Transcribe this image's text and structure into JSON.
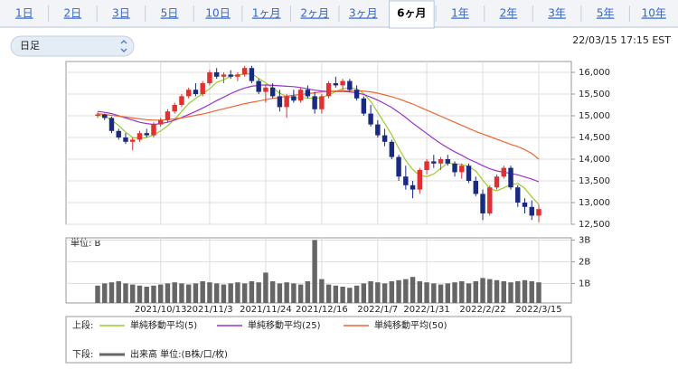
{
  "tabs": [
    "1日",
    "2日",
    "3日",
    "5日",
    "10日",
    "1ヶ月",
    "2ヶ月",
    "3ヶ月",
    "6ヶ月",
    "1年",
    "2年",
    "3年",
    "5年",
    "10年"
  ],
  "selected_tab": 8,
  "dropdown": "日足",
  "timestamp": "22/03/15 17:15 EST",
  "chart_data": {
    "type": "candlestick",
    "categories": [
      null,
      null,
      null,
      null,
      null,
      null,
      null,
      null,
      null,
      "2021/10/13",
      null,
      null,
      null,
      null,
      null,
      null,
      "2021/11/3",
      null,
      null,
      null,
      null,
      null,
      null,
      null,
      "2021/11/24",
      null,
      null,
      null,
      null,
      null,
      null,
      null,
      "2021/12/16",
      null,
      null,
      null,
      null,
      null,
      null,
      null,
      "2022/1/7",
      null,
      null,
      null,
      null,
      null,
      null,
      "2022/1/31",
      null,
      null,
      null,
      null,
      null,
      null,
      null,
      "2022/2/22",
      null,
      null,
      null,
      null,
      null,
      null,
      null,
      "2022/3/15"
    ],
    "candles": [
      [
        15000,
        15080,
        14950,
        15030
      ],
      [
        15030,
        15050,
        14900,
        14950
      ],
      [
        14950,
        14980,
        14600,
        14650
      ],
      [
        14650,
        14700,
        14450,
        14500
      ],
      [
        14500,
        14600,
        14350,
        14400
      ],
      [
        14400,
        14500,
        14200,
        14450
      ],
      [
        14450,
        14650,
        14400,
        14600
      ],
      [
        14600,
        14700,
        14500,
        14550
      ],
      [
        14550,
        14850,
        14500,
        14800
      ],
      [
        14800,
        14950,
        14750,
        14900
      ],
      [
        14900,
        15150,
        14850,
        15100
      ],
      [
        15100,
        15300,
        15050,
        15250
      ],
      [
        15250,
        15500,
        15200,
        15450
      ],
      [
        15450,
        15650,
        15400,
        15600
      ],
      [
        15600,
        15750,
        15450,
        15500
      ],
      [
        15500,
        15800,
        15450,
        15750
      ],
      [
        15750,
        16050,
        15700,
        16000
      ],
      [
        16000,
        16100,
        15850,
        15900
      ],
      [
        15900,
        16000,
        15750,
        15950
      ],
      [
        15950,
        16050,
        15850,
        15900
      ],
      [
        15900,
        16000,
        15800,
        15950
      ],
      [
        15950,
        16150,
        15900,
        16100
      ],
      [
        16100,
        16150,
        15750,
        15800
      ],
      [
        15800,
        15850,
        15500,
        15550
      ],
      [
        15550,
        15700,
        15300,
        15650
      ],
      [
        15650,
        15750,
        15400,
        15450
      ],
      [
        15450,
        15600,
        15100,
        15200
      ],
      [
        15200,
        15500,
        14950,
        15450
      ],
      [
        15450,
        15600,
        15300,
        15350
      ],
      [
        15350,
        15650,
        15300,
        15600
      ],
      [
        15600,
        15700,
        15400,
        15450
      ],
      [
        15450,
        15550,
        15050,
        15150
      ],
      [
        15150,
        15500,
        15050,
        15450
      ],
      [
        15450,
        15800,
        15400,
        15750
      ],
      [
        15750,
        15900,
        15650,
        15700
      ],
      [
        15700,
        15850,
        15600,
        15800
      ],
      [
        15800,
        15850,
        15550,
        15600
      ],
      [
        15600,
        15700,
        15350,
        15400
      ],
      [
        15400,
        15450,
        15000,
        15050
      ],
      [
        15050,
        15250,
        14750,
        14800
      ],
      [
        14800,
        14900,
        14500,
        14550
      ],
      [
        14550,
        14700,
        14300,
        14400
      ],
      [
        14400,
        14450,
        14000,
        14050
      ],
      [
        14050,
        14100,
        13500,
        13600
      ],
      [
        13600,
        13850,
        13300,
        13400
      ],
      [
        13400,
        13500,
        13100,
        13300
      ],
      [
        13300,
        13800,
        13200,
        13750
      ],
      [
        13750,
        14000,
        13650,
        13950
      ],
      [
        13950,
        14100,
        13800,
        13900
      ],
      [
        13900,
        14050,
        13750,
        14000
      ],
      [
        14000,
        14100,
        13850,
        13900
      ],
      [
        13900,
        13950,
        13600,
        13700
      ],
      [
        13700,
        13900,
        13550,
        13850
      ],
      [
        13850,
        13900,
        13450,
        13500
      ],
      [
        13500,
        13600,
        13150,
        13200
      ],
      [
        13200,
        13300,
        12600,
        12750
      ],
      [
        12750,
        13400,
        12700,
        13350
      ],
      [
        13350,
        13650,
        13300,
        13600
      ],
      [
        13600,
        13850,
        13550,
        13800
      ],
      [
        13800,
        13850,
        13300,
        13350
      ],
      [
        13350,
        13400,
        12900,
        13000
      ],
      [
        13000,
        13100,
        12750,
        12900
      ],
      [
        12900,
        13050,
        12600,
        12700
      ],
      [
        12700,
        12950,
        12550,
        12850
      ]
    ],
    "up_color": "#e03030",
    "down_color": "#1a2a80",
    "ylim": [
      12500,
      16250
    ],
    "yticks": [
      {
        "value": 12500,
        "label": "12,500"
      },
      {
        "value": 13000,
        "label": "13,000"
      },
      {
        "value": 13500,
        "label": "13,500"
      },
      {
        "value": 14000,
        "label": "14,000"
      },
      {
        "value": 14500,
        "label": "14,500"
      },
      {
        "value": 15000,
        "label": "15,000"
      },
      {
        "value": 15500,
        "label": "15,500"
      },
      {
        "value": 16000,
        "label": "16,000"
      }
    ],
    "grid": true,
    "upper_label": "上段:",
    "lower_label": "下段:",
    "series": [
      {
        "name": "単純移動平均(5)",
        "color": "#99cc33",
        "values": [
          15000,
          15000,
          14900,
          14780,
          14620,
          14500,
          14480,
          14500,
          14560,
          14650,
          14770,
          14920,
          15100,
          15280,
          15400,
          15510,
          15620,
          15770,
          15830,
          15910,
          15940,
          15960,
          15970,
          15860,
          15760,
          15640,
          15520,
          15440,
          15410,
          15420,
          15410,
          15400,
          15420,
          15480,
          15560,
          15620,
          15650,
          15620,
          15510,
          15330,
          15080,
          14820,
          14560,
          14250,
          13970,
          13760,
          13620,
          13600,
          13660,
          13790,
          13910,
          13890,
          13880,
          13830,
          13730,
          13520,
          13320,
          13270,
          13340,
          13420,
          13440,
          13330,
          13130,
          12960
        ]
      },
      {
        "name": "単純移動平均(25)",
        "color": "#9933cc",
        "values": [
          15100,
          15080,
          15050,
          15000,
          14950,
          14900,
          14850,
          14820,
          14800,
          14820,
          14850,
          14900,
          14960,
          15030,
          15100,
          15180,
          15260,
          15350,
          15430,
          15510,
          15580,
          15640,
          15680,
          15700,
          15710,
          15700,
          15690,
          15680,
          15670,
          15650,
          15620,
          15590,
          15570,
          15560,
          15560,
          15560,
          15550,
          15530,
          15490,
          15430,
          15360,
          15280,
          15190,
          15080,
          14960,
          14830,
          14710,
          14590,
          14470,
          14360,
          14260,
          14170,
          14090,
          14000,
          13930,
          13850,
          13780,
          13730,
          13700,
          13670,
          13640,
          13590,
          13540,
          13480
        ]
      },
      {
        "name": "単純移動平均(50)",
        "color": "#ee6633",
        "values": [
          15050,
          15030,
          15010,
          14990,
          14970,
          14950,
          14930,
          14910,
          14900,
          14900,
          14910,
          14930,
          14950,
          14980,
          15010,
          15040,
          15080,
          15120,
          15160,
          15200,
          15240,
          15280,
          15310,
          15340,
          15370,
          15400,
          15420,
          15450,
          15470,
          15490,
          15510,
          15530,
          15550,
          15560,
          15570,
          15580,
          15580,
          15580,
          15570,
          15550,
          15520,
          15480,
          15440,
          15390,
          15330,
          15270,
          15200,
          15130,
          15060,
          14990,
          14920,
          14850,
          14780,
          14710,
          14640,
          14580,
          14520,
          14460,
          14400,
          14340,
          14290,
          14220,
          14130,
          14000
        ]
      }
    ],
    "volume": {
      "name": "出来高 単位:(B株/口/枚)",
      "unit_label": "単位: B",
      "color": "#666666",
      "ylim": [
        0.1,
        3.1
      ],
      "yticks": [
        {
          "value": 3,
          "label": "3B"
        },
        {
          "value": 2,
          "label": "2B"
        },
        {
          "value": 1,
          "label": "1B"
        }
      ],
      "values": [
        0.9,
        1.0,
        1.05,
        1.1,
        1.0,
        0.95,
        0.9,
        0.85,
        0.9,
        0.95,
        1.0,
        1.05,
        1.0,
        0.95,
        1.0,
        1.1,
        1.05,
        1.0,
        0.95,
        1.0,
        1.05,
        1.0,
        1.1,
        1.05,
        1.5,
        1.1,
        1.0,
        1.05,
        1.0,
        0.95,
        1.1,
        3.0,
        1.2,
        0.95,
        0.9,
        0.85,
        0.8,
        0.9,
        1.0,
        1.1,
        1.05,
        1.0,
        1.1,
        1.15,
        1.2,
        1.3,
        1.1,
        1.05,
        1.0,
        0.95,
        1.0,
        1.05,
        1.1,
        1.0,
        1.1,
        1.25,
        1.2,
        1.15,
        1.1,
        1.05,
        1.1,
        1.15,
        1.1,
        1.05
      ]
    }
  }
}
